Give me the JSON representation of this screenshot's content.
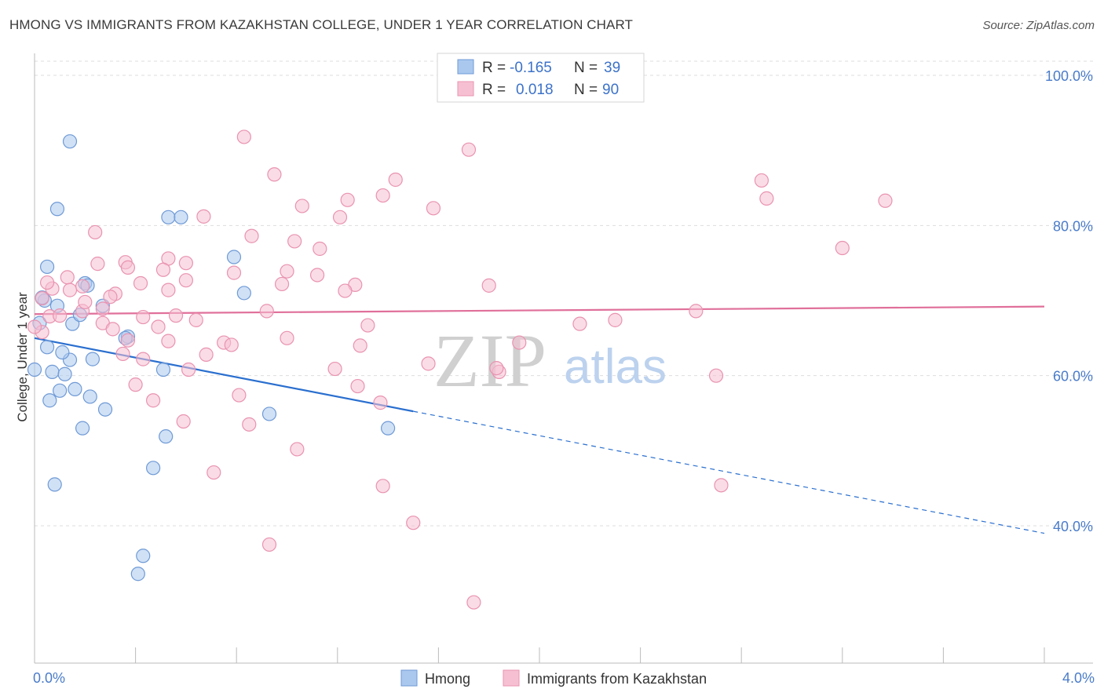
{
  "title": "HMONG VS IMMIGRANTS FROM KAZAKHSTAN COLLEGE, UNDER 1 YEAR CORRELATION CHART",
  "source": "Source: ZipAtlas.com",
  "watermark": {
    "zip": "ZIP",
    "atlas": "atlas"
  },
  "colors": {
    "hmong_fill": "#aac8ee",
    "hmong_stroke": "#6f9ad6",
    "hmong_line": "#2a6fcf",
    "kaz_fill": "#f6c0d2",
    "kaz_stroke": "#e993b1",
    "kaz_line": "#e0709a",
    "grid": "#dddddd",
    "axis_text": "#4a7cc9"
  },
  "legend": {
    "rows": [
      {
        "r_label": "R =",
        "r_value": "-0.165",
        "n_label": "N =",
        "n_value": "39"
      },
      {
        "r_label": "R =",
        "r_value": "0.018",
        "n_label": "N =",
        "n_value": "90"
      }
    ]
  },
  "bottom_legend": [
    "Hmong",
    "Immigrants from Kazakhstan"
  ],
  "chart_data": {
    "type": "scatter",
    "title": "HMONG VS IMMIGRANTS FROM KAZAKHSTAN COLLEGE, UNDER 1 YEAR CORRELATION CHART",
    "xlabel": "",
    "ylabel": "College, Under 1 year",
    "xlim": [
      0,
      4.2
    ],
    "ylim": [
      20,
      104
    ],
    "x_tick_labels": [
      "0.0%",
      "4.0%"
    ],
    "y_tick_labels": [
      "100.0%",
      "80.0%",
      "60.0%",
      "40.0%"
    ],
    "y_ticks": [
      100,
      80,
      60,
      40
    ],
    "grid": true,
    "legend_position": "top-center",
    "series": [
      {
        "name": "Hmong",
        "points": [
          [
            0.14,
            91.2
          ],
          [
            0.09,
            82.2
          ],
          [
            0.53,
            81.1
          ],
          [
            0.58,
            81.1
          ],
          [
            0.05,
            74.5
          ],
          [
            0.79,
            75.8
          ],
          [
            0.2,
            72.3
          ],
          [
            0.83,
            71.0
          ],
          [
            0.04,
            70.0
          ],
          [
            0.09,
            69.3
          ],
          [
            0.27,
            69.3
          ],
          [
            0.02,
            67.0
          ],
          [
            0.15,
            66.9
          ],
          [
            0.37,
            65.2
          ],
          [
            0.36,
            65.0
          ],
          [
            0.05,
            63.8
          ],
          [
            0.14,
            62.1
          ],
          [
            0.23,
            62.2
          ],
          [
            0.0,
            60.8
          ],
          [
            0.07,
            60.5
          ],
          [
            0.12,
            60.2
          ],
          [
            0.51,
            60.8
          ],
          [
            0.1,
            58.0
          ],
          [
            0.16,
            58.2
          ],
          [
            0.22,
            57.2
          ],
          [
            0.06,
            56.7
          ],
          [
            0.28,
            55.5
          ],
          [
            0.93,
            54.9
          ],
          [
            0.19,
            53.0
          ],
          [
            1.4,
            53.0
          ],
          [
            0.52,
            51.9
          ],
          [
            0.47,
            47.7
          ],
          [
            0.08,
            45.5
          ],
          [
            0.43,
            36.0
          ],
          [
            0.41,
            33.6
          ],
          [
            0.03,
            70.4
          ],
          [
            0.21,
            72.0
          ],
          [
            0.11,
            63.1
          ],
          [
            0.18,
            68.1
          ]
        ]
      },
      {
        "name": "Immigrants from Kazakhstan",
        "points": [
          [
            0.83,
            91.8
          ],
          [
            1.72,
            90.1
          ],
          [
            0.95,
            86.8
          ],
          [
            1.43,
            86.1
          ],
          [
            1.38,
            84.0
          ],
          [
            1.24,
            83.4
          ],
          [
            1.06,
            82.6
          ],
          [
            1.58,
            82.3
          ],
          [
            1.21,
            81.1
          ],
          [
            0.67,
            81.2
          ],
          [
            2.88,
            86.0
          ],
          [
            2.9,
            83.6
          ],
          [
            3.37,
            83.3
          ],
          [
            3.2,
            77.0
          ],
          [
            0.24,
            79.1
          ],
          [
            0.86,
            78.6
          ],
          [
            1.03,
            77.9
          ],
          [
            1.13,
            76.9
          ],
          [
            0.53,
            75.6
          ],
          [
            0.36,
            75.1
          ],
          [
            0.25,
            74.9
          ],
          [
            0.6,
            75.0
          ],
          [
            0.37,
            74.4
          ],
          [
            0.51,
            74.1
          ],
          [
            0.79,
            73.7
          ],
          [
            1.0,
            73.9
          ],
          [
            1.12,
            73.4
          ],
          [
            0.13,
            73.1
          ],
          [
            0.42,
            72.3
          ],
          [
            0.6,
            72.7
          ],
          [
            0.98,
            72.2
          ],
          [
            1.27,
            72.1
          ],
          [
            0.07,
            71.6
          ],
          [
            0.14,
            71.4
          ],
          [
            0.19,
            71.9
          ],
          [
            0.32,
            70.9
          ],
          [
            0.53,
            71.4
          ],
          [
            1.23,
            71.3
          ],
          [
            1.8,
            72.0
          ],
          [
            0.03,
            70.3
          ],
          [
            0.27,
            68.9
          ],
          [
            0.19,
            68.6
          ],
          [
            0.92,
            68.6
          ],
          [
            2.62,
            68.6
          ],
          [
            0.06,
            67.9
          ],
          [
            0.43,
            67.8
          ],
          [
            0.64,
            67.4
          ],
          [
            0.27,
            67.0
          ],
          [
            0.49,
            66.5
          ],
          [
            1.32,
            66.7
          ],
          [
            2.16,
            66.9
          ],
          [
            2.3,
            67.4
          ],
          [
            0.03,
            65.8
          ],
          [
            0.0,
            66.5
          ],
          [
            0.31,
            66.2
          ],
          [
            0.37,
            64.7
          ],
          [
            0.53,
            64.6
          ],
          [
            0.75,
            64.4
          ],
          [
            0.78,
            64.1
          ],
          [
            1.29,
            64.0
          ],
          [
            1.92,
            64.4
          ],
          [
            0.68,
            62.8
          ],
          [
            0.43,
            62.2
          ],
          [
            1.56,
            61.6
          ],
          [
            0.61,
            60.8
          ],
          [
            1.19,
            60.9
          ],
          [
            1.84,
            60.5
          ],
          [
            1.83,
            61.0
          ],
          [
            2.7,
            60.0
          ],
          [
            0.4,
            58.8
          ],
          [
            1.28,
            58.6
          ],
          [
            0.81,
            57.4
          ],
          [
            0.47,
            56.7
          ],
          [
            1.37,
            56.4
          ],
          [
            0.59,
            53.9
          ],
          [
            0.85,
            53.5
          ],
          [
            1.04,
            50.2
          ],
          [
            0.71,
            47.1
          ],
          [
            1.38,
            45.3
          ],
          [
            2.72,
            45.4
          ],
          [
            1.5,
            40.4
          ],
          [
            0.93,
            37.5
          ],
          [
            1.74,
            29.8
          ],
          [
            0.1,
            68.0
          ],
          [
            0.05,
            72.4
          ],
          [
            0.2,
            69.8
          ],
          [
            0.56,
            68.0
          ],
          [
            1.0,
            65.0
          ],
          [
            0.3,
            70.5
          ],
          [
            0.35,
            62.9
          ]
        ]
      }
    ],
    "trend_lines": [
      {
        "series": "Hmong",
        "solid_x": [
          0.0,
          1.5
        ],
        "dashed_x": [
          1.5,
          4.0
        ],
        "y_at_0": 65.0,
        "slope": -6.5
      },
      {
        "series": "Immigrants from Kazakhstan",
        "x": [
          0.0,
          4.0
        ],
        "y_at_0": 68.2,
        "slope": 0.25
      }
    ]
  }
}
